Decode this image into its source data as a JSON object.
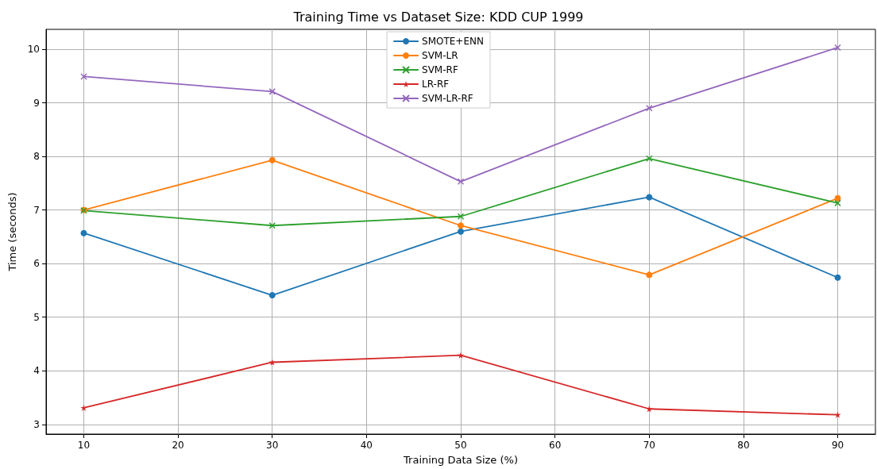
{
  "chart_data": {
    "type": "line",
    "title": "Training Time vs Dataset Size: KDD CUP 1999",
    "xlabel": "Training Data Size (%)",
    "ylabel": "Time (seconds)",
    "x": [
      10,
      30,
      50,
      70,
      90
    ],
    "series": [
      {
        "name": "SMOTE+ENN",
        "color": "#1f77b4",
        "marker": "circle",
        "values": [
          6.57,
          5.41,
          6.6,
          7.24,
          5.74
        ]
      },
      {
        "name": "SVM-LR",
        "color": "#ff7f0e",
        "marker": "circle",
        "values": [
          7.0,
          7.93,
          6.71,
          5.79,
          7.22
        ]
      },
      {
        "name": "SVM-RF",
        "color": "#2ca02c",
        "marker": "cross",
        "values": [
          6.99,
          6.71,
          6.88,
          7.96,
          7.13
        ]
      },
      {
        "name": "LR-RF",
        "color": "#d62728",
        "marker": "star",
        "values": [
          3.31,
          4.16,
          4.29,
          3.29,
          3.18
        ]
      },
      {
        "name": "SVM-LR-RF",
        "color": "#9467bd",
        "marker": "cross",
        "values": [
          9.49,
          9.21,
          7.53,
          8.9,
          10.03
        ]
      }
    ],
    "xlim": [
      6,
      94
    ],
    "xticks": [
      10,
      20,
      30,
      40,
      50,
      60,
      70,
      80,
      90
    ],
    "ylim": [
      2.82,
      10.37
    ],
    "yticks": [
      3,
      4,
      5,
      6,
      7,
      8,
      9,
      10
    ],
    "grid": true,
    "legend": "top",
    "line_style": "solid"
  }
}
